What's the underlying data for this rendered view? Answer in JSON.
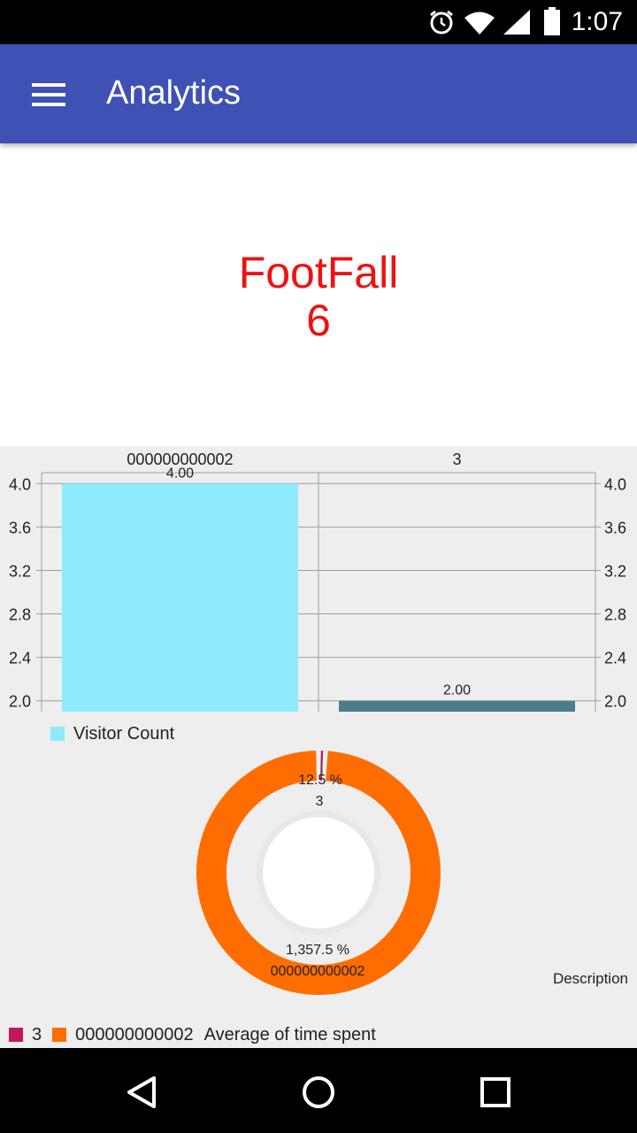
{
  "status_bar": {
    "time": "1:07",
    "icons": [
      "alarm-icon",
      "wifi-icon",
      "signal-icon",
      "battery-icon"
    ]
  },
  "app_bar": {
    "title": "Analytics",
    "menu_icon": "hamburger-menu-icon",
    "color": "#3F51B5"
  },
  "footfall": {
    "label": "FootFall",
    "value": "6",
    "color": "#EE1111"
  },
  "bar_chart": {
    "legend_label": "Visitor Count"
  },
  "pie_chart": {
    "description": "Description",
    "legend": [
      {
        "label": "3",
        "color": "#C2185B"
      },
      {
        "label": "000000000002",
        "color": "#FF6D00"
      }
    ],
    "center_text": "Average of time spent"
  },
  "chart_data": [
    {
      "type": "bar",
      "categories": [
        "000000000002",
        "3"
      ],
      "series": [
        {
          "name": "Visitor Count",
          "values": [
            4.0,
            2.0
          ],
          "colors": [
            "#8DEBFC",
            "#4B7D8A"
          ]
        }
      ],
      "value_labels": [
        "4.00",
        "2.00"
      ],
      "ylim": [
        1.9,
        4.1
      ],
      "yticks": [
        "4.0",
        "3.6",
        "3.2",
        "2.8",
        "2.4",
        "2.0"
      ],
      "grid": true,
      "legend": "bottom-left"
    },
    {
      "type": "pie",
      "slices": [
        {
          "label": "3",
          "percent_label": "12.5 %",
          "value": 12.5,
          "color": "#C2185B"
        },
        {
          "label": "000000000002",
          "percent_label": "1,357.5 %",
          "value": 1357.5,
          "color": "#FF6D00"
        }
      ],
      "center_text": "Average of time spent",
      "legend": "bottom-left"
    }
  ],
  "nav_bar": {
    "back": "back-icon",
    "home": "home-icon",
    "recents": "recents-icon"
  }
}
